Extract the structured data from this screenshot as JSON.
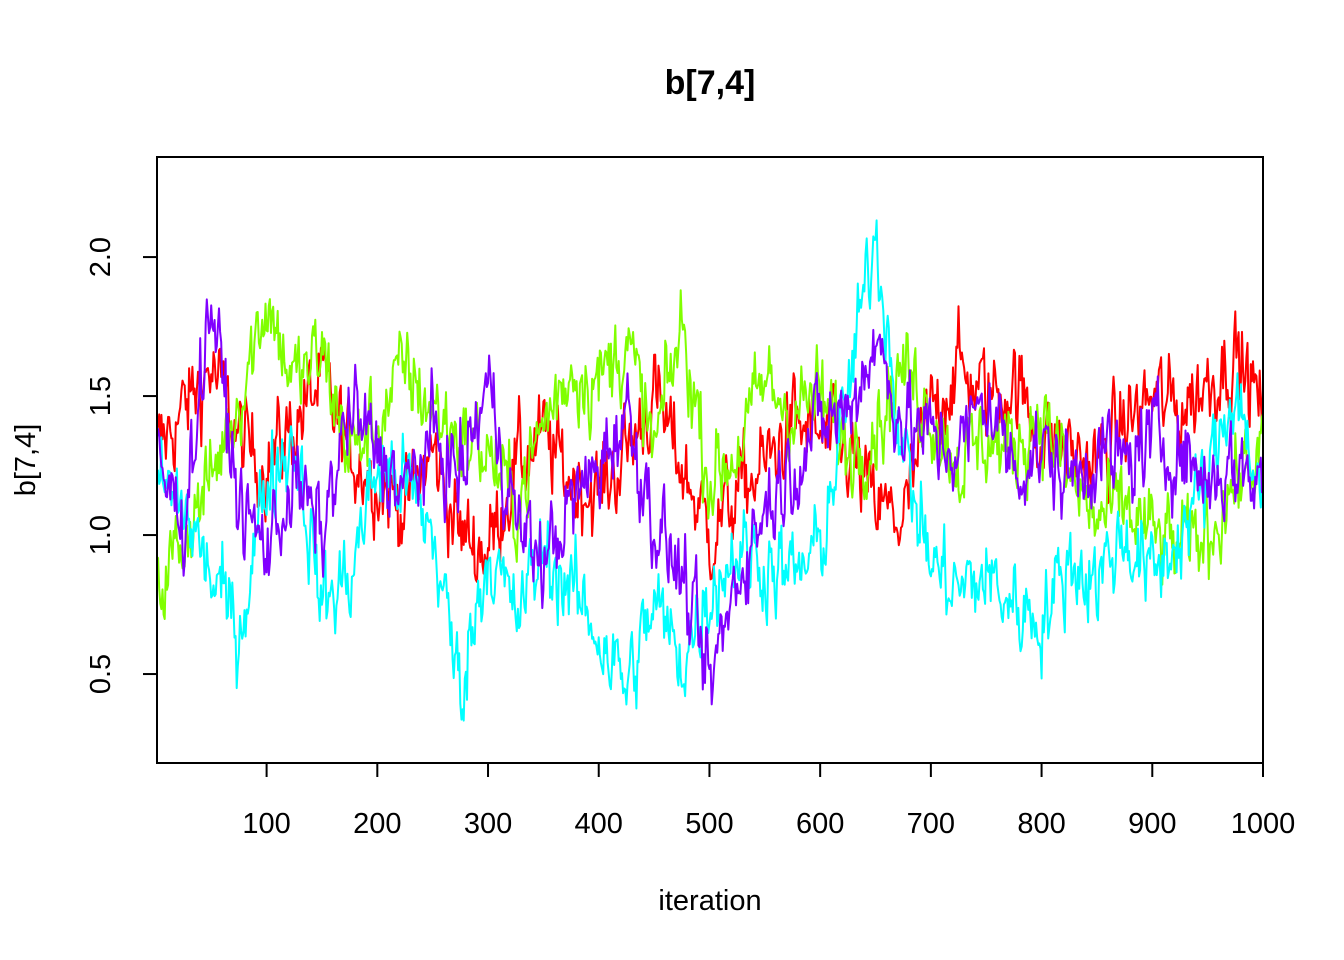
{
  "chart_data": {
    "type": "line",
    "title": "b[7,4]",
    "xlabel": "iteration",
    "ylabel": "b[7,4]",
    "xlim": [
      1,
      1000
    ],
    "ylim": [
      0.18,
      2.36
    ],
    "xticks": [
      100,
      200,
      300,
      400,
      500,
      600,
      700,
      800,
      900,
      1000
    ],
    "yticks": [
      0.5,
      1.0,
      1.5,
      2.0
    ],
    "ytick_labels": [
      "0.5",
      "1.0",
      "1.5",
      "2.0"
    ],
    "grid": false,
    "legend": "none",
    "series": [
      {
        "color": "#FF0000",
        "x": [
          1,
          25,
          50,
          75,
          100,
          125,
          150,
          175,
          200,
          225,
          250,
          275,
          300,
          325,
          350,
          375,
          400,
          425,
          450,
          475,
          500,
          525,
          550,
          575,
          600,
          625,
          650,
          675,
          700,
          725,
          750,
          775,
          800,
          825,
          850,
          875,
          900,
          925,
          950,
          975,
          1000
        ],
        "values": [
          1.3,
          1.45,
          1.6,
          1.35,
          1.25,
          1.4,
          1.55,
          1.3,
          1.2,
          1.1,
          1.3,
          1.0,
          0.95,
          1.25,
          1.35,
          1.2,
          1.15,
          1.3,
          1.5,
          1.25,
          1.0,
          1.15,
          1.25,
          1.4,
          1.35,
          1.3,
          1.1,
          1.05,
          1.45,
          1.6,
          1.5,
          1.55,
          1.35,
          1.3,
          1.25,
          1.4,
          1.5,
          1.45,
          1.55,
          1.65,
          1.45
        ]
      },
      {
        "color": "#80FF00",
        "x": [
          1,
          25,
          50,
          75,
          100,
          125,
          150,
          175,
          200,
          225,
          250,
          275,
          300,
          325,
          350,
          375,
          400,
          425,
          450,
          475,
          500,
          525,
          550,
          575,
          600,
          625,
          650,
          675,
          700,
          725,
          750,
          775,
          800,
          825,
          850,
          875,
          900,
          925,
          950,
          975,
          1000
        ],
        "values": [
          0.8,
          1.0,
          1.2,
          1.5,
          1.85,
          1.55,
          1.65,
          1.3,
          1.4,
          1.6,
          1.45,
          1.35,
          1.3,
          1.1,
          1.4,
          1.6,
          1.55,
          1.7,
          1.3,
          1.75,
          1.2,
          1.3,
          1.55,
          1.45,
          1.5,
          1.3,
          1.4,
          1.6,
          1.45,
          1.25,
          1.35,
          1.3,
          1.45,
          1.2,
          1.05,
          1.1,
          1.0,
          0.95,
          1.0,
          1.2,
          1.3
        ]
      },
      {
        "color": "#00FFFF",
        "x": [
          1,
          25,
          50,
          75,
          100,
          125,
          150,
          175,
          200,
          225,
          250,
          275,
          300,
          325,
          350,
          375,
          400,
          425,
          450,
          475,
          500,
          525,
          550,
          575,
          600,
          625,
          650,
          675,
          700,
          725,
          750,
          775,
          800,
          825,
          850,
          875,
          900,
          925,
          950,
          975,
          1000
        ],
        "values": [
          1.2,
          1.1,
          0.85,
          0.65,
          1.2,
          1.35,
          0.75,
          0.85,
          1.25,
          1.2,
          1.0,
          0.45,
          0.95,
          0.7,
          0.95,
          0.8,
          0.65,
          0.45,
          0.75,
          0.55,
          0.8,
          0.95,
          0.9,
          0.85,
          0.95,
          1.5,
          2.1,
          1.3,
          0.9,
          0.8,
          0.85,
          0.75,
          0.7,
          0.9,
          0.85,
          1.0,
          0.85,
          1.0,
          1.2,
          1.55,
          1.1
        ]
      },
      {
        "color": "#8000FF",
        "x": [
          1,
          25,
          50,
          75,
          100,
          125,
          150,
          175,
          200,
          225,
          250,
          275,
          300,
          325,
          350,
          375,
          400,
          425,
          450,
          475,
          500,
          525,
          550,
          575,
          600,
          625,
          650,
          675,
          700,
          725,
          750,
          775,
          800,
          825,
          850,
          875,
          900,
          925,
          950,
          975,
          1000
        ],
        "values": [
          1.25,
          1.05,
          1.85,
          1.1,
          0.95,
          1.2,
          1.0,
          1.45,
          1.3,
          1.15,
          1.35,
          1.2,
          1.55,
          1.05,
          0.9,
          1.1,
          1.25,
          1.45,
          1.05,
          0.85,
          0.45,
          0.85,
          1.1,
          1.25,
          1.4,
          1.45,
          1.7,
          1.4,
          1.35,
          1.3,
          1.5,
          1.25,
          1.3,
          1.2,
          1.3,
          1.25,
          1.35,
          1.3,
          1.2,
          1.25,
          1.2
        ]
      }
    ]
  }
}
